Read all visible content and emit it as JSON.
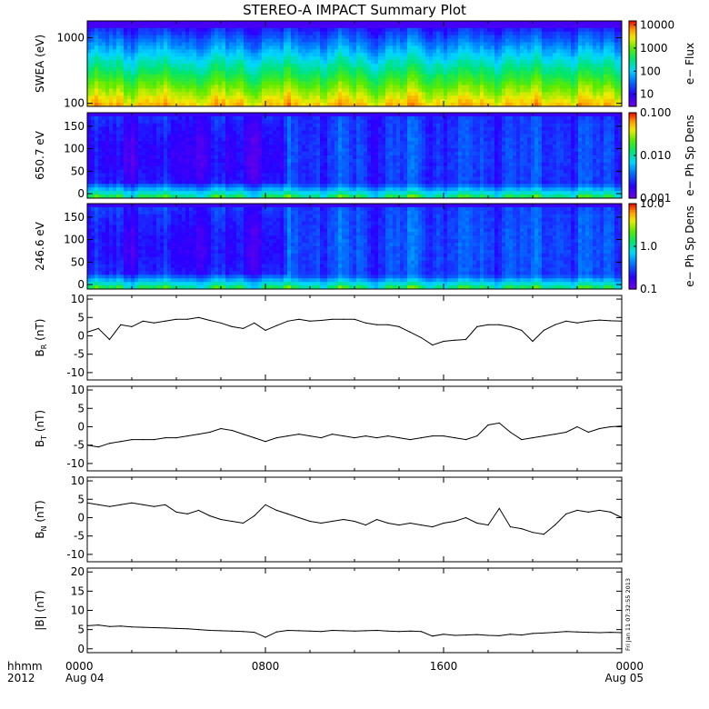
{
  "title": "STEREO-A IMPACT Summary Plot",
  "stamp": "Fri Jan 11 07:32:55 2013",
  "x_axis": {
    "label_line1": "hhmm",
    "label_line2": "2012",
    "ticks": [
      {
        "hour": 0,
        "label": "0000",
        "sublabel": "Aug 04"
      },
      {
        "hour": 8,
        "label": "0800",
        "sublabel": ""
      },
      {
        "hour": 16,
        "label": "1600",
        "sublabel": ""
      },
      {
        "hour": 24,
        "label": "0000",
        "sublabel": "Aug 05"
      }
    ]
  },
  "chart_data": [
    {
      "type": "heatmap",
      "id": "swea",
      "ylabel": "SWEA (eV)",
      "yscale": "log",
      "ylim": [
        90,
        1800
      ],
      "yticks": [
        100,
        1000
      ],
      "ytick_labels": [
        "100",
        "1000"
      ],
      "colorbar": {
        "label": "e− Flux",
        "scale": "log",
        "range": [
          3,
          15000
        ],
        "ticks": [
          10,
          100,
          1000,
          10000
        ],
        "tick_labels": [
          "10",
          "100",
          "1000",
          "10000"
        ]
      }
    },
    {
      "type": "heatmap",
      "id": "pad650",
      "ylabel": "650.7 eV",
      "yscale": "linear",
      "ylim": [
        -10,
        180
      ],
      "yticks": [
        0,
        50,
        100,
        150
      ],
      "ytick_labels": [
        "0",
        "50",
        "100",
        "150"
      ],
      "colorbar": {
        "label": "e− Ph Sp Dens",
        "scale": "log",
        "range": [
          0.001,
          0.1
        ],
        "ticks": [
          0.001,
          0.01,
          0.1
        ],
        "tick_labels": [
          "0.001",
          "0.010",
          "0.100"
        ]
      }
    },
    {
      "type": "heatmap",
      "id": "pad246",
      "ylabel": "246.6 eV",
      "yscale": "linear",
      "ylim": [
        -10,
        180
      ],
      "yticks": [
        0,
        50,
        100,
        150
      ],
      "ytick_labels": [
        "0",
        "50",
        "100",
        "150"
      ],
      "colorbar": {
        "label": "e− Ph Sp Dens",
        "scale": "log",
        "range": [
          0.1,
          10
        ],
        "ticks": [
          0.1,
          1,
          10
        ],
        "tick_labels": [
          "0.1",
          "1.0",
          "10.0"
        ]
      }
    },
    {
      "type": "line",
      "id": "br",
      "ylabel_main": "B",
      "ylabel_sub": "R",
      "ylabel_unit": "(nT)",
      "ylim": [
        -12,
        11
      ],
      "yticks": [
        -10,
        -5,
        0,
        5,
        10
      ],
      "ytick_labels": [
        "-10",
        "-5",
        "0",
        "5",
        "10"
      ],
      "x": [
        0,
        0.5,
        1,
        1.5,
        2,
        2.5,
        3,
        3.5,
        4,
        4.5,
        5,
        5.5,
        6,
        6.5,
        7,
        7.5,
        8,
        8.5,
        9,
        9.5,
        10,
        10.5,
        11,
        11.5,
        12,
        12.5,
        13,
        13.5,
        14,
        14.5,
        15,
        15.5,
        16,
        16.5,
        17,
        17.5,
        18,
        18.5,
        19,
        19.5,
        20,
        20.5,
        21,
        21.5,
        22,
        22.5,
        23,
        23.5,
        24
      ],
      "y": [
        1,
        2,
        -1,
        3,
        2.5,
        4,
        3.5,
        4,
        4.5,
        4.5,
        5,
        4.2,
        3.5,
        2.5,
        2,
        3.5,
        1.5,
        2.8,
        4,
        4.5,
        4,
        4.2,
        4.5,
        4.5,
        4.5,
        3.5,
        3,
        3,
        2.5,
        1,
        -0.5,
        -2.5,
        -1.5,
        -1.2,
        -1,
        2.5,
        3,
        3,
        2.5,
        1.5,
        -1.5,
        1.5,
        3,
        4,
        3.5,
        4,
        4.3,
        4.1,
        4
      ]
    },
    {
      "type": "line",
      "id": "bt",
      "ylabel_main": "B",
      "ylabel_sub": "T",
      "ylabel_unit": "(nT)",
      "ylim": [
        -12,
        11
      ],
      "yticks": [
        -10,
        -5,
        0,
        5,
        10
      ],
      "ytick_labels": [
        "-10",
        "-5",
        "0",
        "5",
        "10"
      ],
      "x": [
        0,
        0.5,
        1,
        1.5,
        2,
        2.5,
        3,
        3.5,
        4,
        4.5,
        5,
        5.5,
        6,
        6.5,
        7,
        7.5,
        8,
        8.5,
        9,
        9.5,
        10,
        10.5,
        11,
        11.5,
        12,
        12.5,
        13,
        13.5,
        14,
        14.5,
        15,
        15.5,
        16,
        16.5,
        17,
        17.5,
        18,
        18.5,
        19,
        19.5,
        20,
        20.5,
        21,
        21.5,
        22,
        22.5,
        23,
        23.5,
        24
      ],
      "y": [
        -5,
        -5.5,
        -4.5,
        -4,
        -3.5,
        -3.5,
        -3.5,
        -3,
        -3,
        -2.5,
        -2,
        -1.5,
        -0.5,
        -1,
        -2,
        -3,
        -4,
        -3,
        -2.5,
        -2,
        -2.5,
        -3,
        -2,
        -2.5,
        -3,
        -2.5,
        -3,
        -2.5,
        -3,
        -3.5,
        -3,
        -2.5,
        -2.5,
        -3,
        -3.5,
        -2.5,
        0.5,
        1,
        -1.5,
        -3.5,
        -3,
        -2.5,
        -2,
        -1.5,
        0,
        -1.5,
        -0.5,
        0,
        0.2
      ]
    },
    {
      "type": "line",
      "id": "bn",
      "ylabel_main": "B",
      "ylabel_sub": "N",
      "ylabel_unit": "(nT)",
      "ylim": [
        -12,
        11
      ],
      "yticks": [
        -10,
        -5,
        0,
        5,
        10
      ],
      "ytick_labels": [
        "-10",
        "-5",
        "0",
        "5",
        "10"
      ],
      "x": [
        0,
        0.5,
        1,
        1.5,
        2,
        2.5,
        3,
        3.5,
        4,
        4.5,
        5,
        5.5,
        6,
        6.5,
        7,
        7.5,
        8,
        8.5,
        9,
        9.5,
        10,
        10.5,
        11,
        11.5,
        12,
        12.5,
        13,
        13.5,
        14,
        14.5,
        15,
        15.5,
        16,
        16.5,
        17,
        17.5,
        18,
        18.5,
        19,
        19.5,
        20,
        20.5,
        21,
        21.5,
        22,
        22.5,
        23,
        23.5,
        24
      ],
      "y": [
        4,
        3.5,
        3,
        3.5,
        4,
        3.5,
        3,
        3.5,
        1.5,
        1,
        2,
        0.5,
        -0.5,
        -1,
        -1.5,
        0.5,
        3.5,
        2,
        1,
        0,
        -1,
        -1.5,
        -1,
        -0.5,
        -1,
        -2,
        -0.5,
        -1.5,
        -2,
        -1.5,
        -2,
        -2.5,
        -1.5,
        -1,
        0,
        -1.5,
        -2,
        2.5,
        -2.5,
        -3,
        -4,
        -4.5,
        -2,
        1,
        2,
        1.5,
        2,
        1.5,
        0
      ]
    },
    {
      "type": "line",
      "id": "bmag",
      "ylabel_main": "|B|",
      "ylabel_sub": "",
      "ylabel_unit": "(nT)",
      "ylim": [
        -1,
        21
      ],
      "yticks": [
        0,
        5,
        10,
        15,
        20
      ],
      "ytick_labels": [
        "0",
        "5",
        "10",
        "15",
        "20"
      ],
      "x": [
        0,
        0.5,
        1,
        1.5,
        2,
        2.5,
        3,
        3.5,
        4,
        4.5,
        5,
        5.5,
        6,
        6.5,
        7,
        7.5,
        8,
        8.5,
        9,
        9.5,
        10,
        10.5,
        11,
        11.5,
        12,
        12.5,
        13,
        13.5,
        14,
        14.5,
        15,
        15.5,
        16,
        16.5,
        17,
        17.5,
        18,
        18.5,
        19,
        19.5,
        20,
        20.5,
        21,
        21.5,
        22,
        22.5,
        23,
        23.5,
        24
      ],
      "y": [
        6,
        6.2,
        5.8,
        5.9,
        5.7,
        5.6,
        5.5,
        5.4,
        5.3,
        5.2,
        5,
        4.8,
        4.7,
        4.6,
        4.5,
        4.3,
        3,
        4.4,
        4.8,
        4.7,
        4.6,
        4.5,
        4.8,
        4.7,
        4.6,
        4.7,
        4.8,
        4.6,
        4.5,
        4.6,
        4.5,
        3.3,
        3.8,
        3.5,
        3.6,
        3.7,
        3.5,
        3.4,
        3.8,
        3.6,
        4,
        4.1,
        4.3,
        4.5,
        4.4,
        4.3,
        4.2,
        4.3,
        4.2
      ]
    }
  ]
}
